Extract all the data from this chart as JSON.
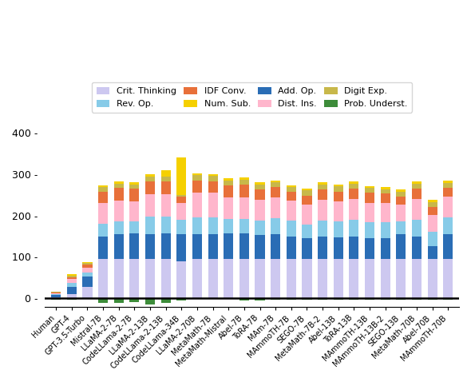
{
  "models": [
    "Human",
    "GPT-4",
    "GPT-3.5-Turbo",
    "Mistral-7B",
    "LLaMA-2-7B",
    "CodeLLama-2-7B",
    "LLaMA-2-13B",
    "CodeLLama-2-13B",
    "CodeLLama-34B",
    "LLaMA-2-70B",
    "MetaMath-7B",
    "MetaMath-Mistral",
    "Abel-7B",
    "ToRA-7B",
    "MAm-7B",
    "MAmmoTH-7B",
    "SEGO-7B",
    "MetaMath-7B-2",
    "Abel-13B",
    "ToRA-13B",
    "MAmmoTH-13B",
    "MAmmoTH-13B-2",
    "SEGO-13B",
    "MetaMath-70B",
    "Abel-70B",
    "MAmmoTH-70B"
  ],
  "categories": [
    "Crit. Thinking",
    "Add. Op.",
    "Rev. Op.",
    "Dist. Ins.",
    "IDF Conv.",
    "Digit Exp.",
    "Num. Sub.",
    "Prob. Underst."
  ],
  "colors": [
    "#cdc8f0",
    "#2a6db5",
    "#87cbe8",
    "#ffb6cc",
    "#e8703a",
    "#c8b84a",
    "#f5d000",
    "#3d8c3a"
  ],
  "stack_order": [
    "Crit. Thinking",
    "Add. Op.",
    "Rev. Op.",
    "Dist. Ins.",
    "IDF Conv.",
    "Digit Exp.",
    "Num. Sub."
  ],
  "neg_cats": [
    "Prob. Underst."
  ],
  "data": {
    "Crit. Thinking": [
      3,
      10,
      28,
      95,
      95,
      95,
      95,
      95,
      90,
      95,
      95,
      95,
      95,
      95,
      95,
      95,
      95,
      95,
      95,
      95,
      95,
      95,
      95,
      95,
      95,
      95
    ],
    "Add. Op.": [
      5,
      18,
      25,
      55,
      60,
      62,
      60,
      62,
      65,
      60,
      60,
      62,
      62,
      58,
      60,
      55,
      50,
      55,
      52,
      55,
      50,
      50,
      60,
      55,
      30,
      60
    ],
    "Rev. Op.": [
      2,
      10,
      10,
      30,
      30,
      28,
      42,
      40,
      35,
      40,
      40,
      35,
      35,
      35,
      38,
      38,
      33,
      38,
      38,
      40,
      38,
      38,
      30,
      40,
      35,
      40
    ],
    "Dist. Ins.": [
      2,
      8,
      10,
      50,
      50,
      48,
      55,
      55,
      40,
      60,
      60,
      52,
      52,
      50,
      50,
      48,
      48,
      50,
      48,
      50,
      48,
      48,
      42,
      50,
      42,
      50
    ],
    "IDF Conv.": [
      2,
      5,
      8,
      28,
      32,
      32,
      30,
      30,
      15,
      30,
      28,
      28,
      30,
      25,
      25,
      22,
      22,
      25,
      25,
      25,
      25,
      22,
      18,
      25,
      18,
      22
    ],
    "Digit Exp.": [
      1,
      4,
      4,
      10,
      10,
      10,
      12,
      12,
      5,
      12,
      12,
      12,
      12,
      12,
      12,
      10,
      12,
      12,
      12,
      12,
      10,
      10,
      12,
      12,
      12,
      12
    ],
    "Num. Sub.": [
      1,
      3,
      3,
      5,
      5,
      5,
      5,
      15,
      90,
      5,
      5,
      5,
      5,
      5,
      5,
      5,
      5,
      5,
      5,
      5,
      5,
      5,
      5,
      5,
      5,
      5
    ],
    "Prob. Underst.": [
      -4,
      -3,
      -2,
      -12,
      -12,
      -9,
      -14,
      -12,
      -5,
      -2,
      -2,
      -2,
      -5,
      -5,
      -3,
      -3,
      -3,
      -3,
      -3,
      -3,
      -3,
      -3,
      -3,
      -3,
      -3,
      -3
    ]
  },
  "ylim": [
    -20,
    440
  ],
  "yticks": [
    0,
    100,
    200,
    300,
    400
  ],
  "legend_order": [
    "Crit. Thinking",
    "Rev. Op.",
    "IDF Conv.",
    "Num. Sub.",
    "Add. Op.",
    "Dist. Ins.",
    "Digit Exp.",
    "Prob. Underst."
  ]
}
